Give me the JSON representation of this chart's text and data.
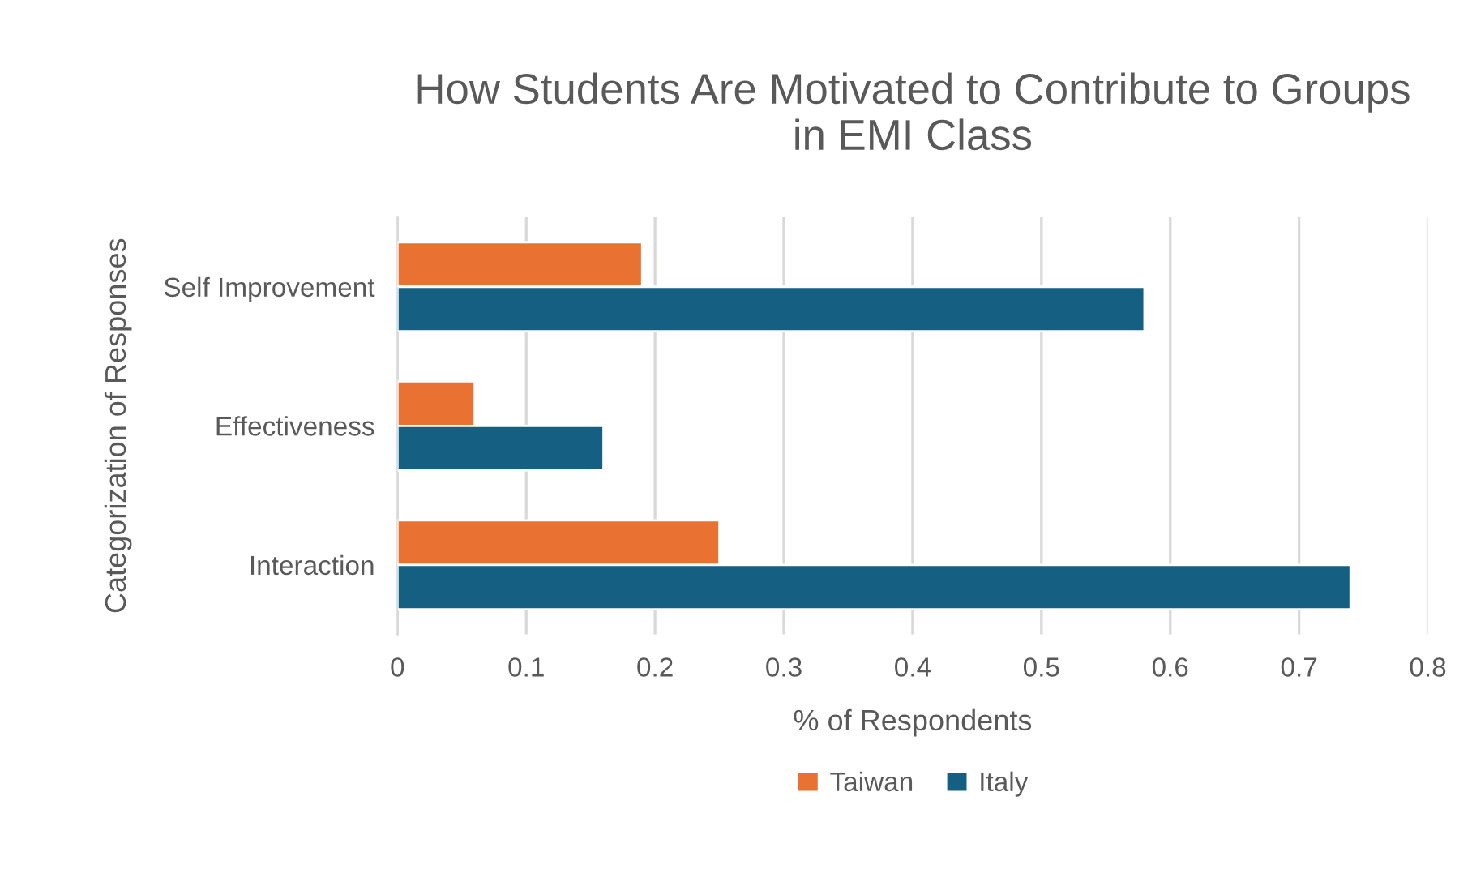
{
  "chart_data": {
    "type": "bar",
    "orientation": "horizontal",
    "title": "How Students Are Motivated to Contribute to Groups\nin EMI Class",
    "xlabel": "% of Respondents",
    "ylabel": "Categorization of Responses",
    "categories": [
      "Self Improvement",
      "Effectiveness",
      "Interaction"
    ],
    "series": [
      {
        "name": "Taiwan",
        "color": "#e97132",
        "values": [
          0.19,
          0.06,
          0.25
        ]
      },
      {
        "name": "Italy",
        "color": "#156082",
        "values": [
          0.58,
          0.16,
          0.74
        ]
      }
    ],
    "xlim": [
      0,
      0.8
    ],
    "xticks": [
      0,
      0.1,
      0.2,
      0.3,
      0.4,
      0.5,
      0.6,
      0.7,
      0.8
    ],
    "grid": "x",
    "legend": "bottom"
  }
}
